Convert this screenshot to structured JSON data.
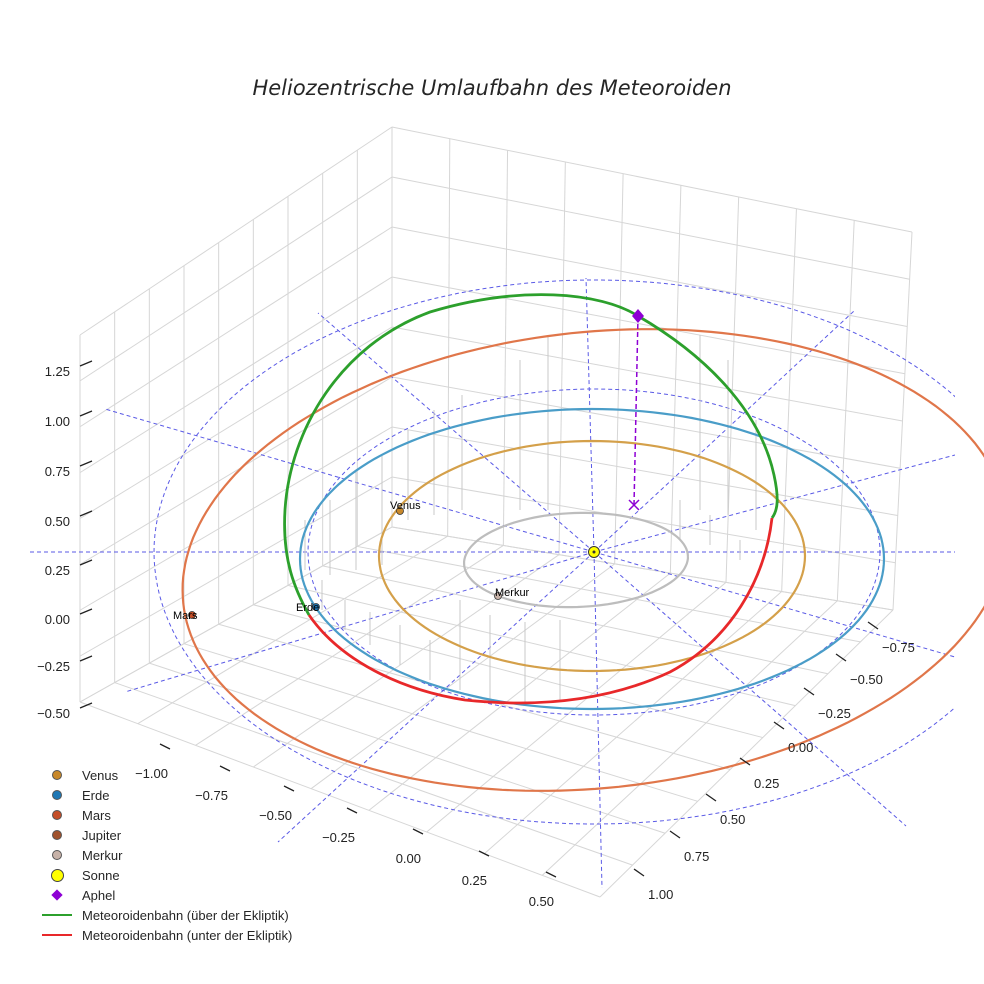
{
  "chart_data": {
    "type": "line",
    "title": "Heliozentrische Umlaufbahn des Meteoroiden",
    "z_ticks": [
      "1.25",
      "1.00",
      "0.75",
      "0.50",
      "0.25",
      "0.00",
      "−0.25",
      "−0.50"
    ],
    "x_ticks": [
      "−1.00",
      "−0.75",
      "−0.50",
      "−0.25",
      "0.00",
      "0.25",
      "0.50"
    ],
    "y_ticks": [
      "−0.75",
      "−0.50",
      "−0.25",
      "0.00",
      "0.25",
      "0.50",
      "0.75",
      "1.00"
    ],
    "planets": [
      {
        "name": "Venus",
        "color": "#c8882a"
      },
      {
        "name": "Erde",
        "color": "#1f77b4"
      },
      {
        "name": "Mars",
        "color": "#c44e28"
      },
      {
        "name": "Jupiter",
        "color": "#a0522d"
      },
      {
        "name": "Merkur",
        "color": "#c7b2a8"
      }
    ],
    "orbit_colors": {
      "Merkur": "#bdbdbd",
      "Venus": "#d4a04a",
      "Erde": "#4a9dc8",
      "Mars": "#e0764a"
    },
    "sun": {
      "name": "Sonne",
      "color": "#ffff00"
    },
    "aphel": {
      "name": "Aphel",
      "color": "#8e00d4"
    },
    "meteoroid": [
      {
        "name": "Meteoroidenbahn (über der Ekliptik)",
        "color": "#2ca02c"
      },
      {
        "name": "Meteoroidenbahn (unter der Ekliptik)",
        "color": "#e8282a"
      }
    ],
    "grid_color": "#5a5ae6"
  }
}
